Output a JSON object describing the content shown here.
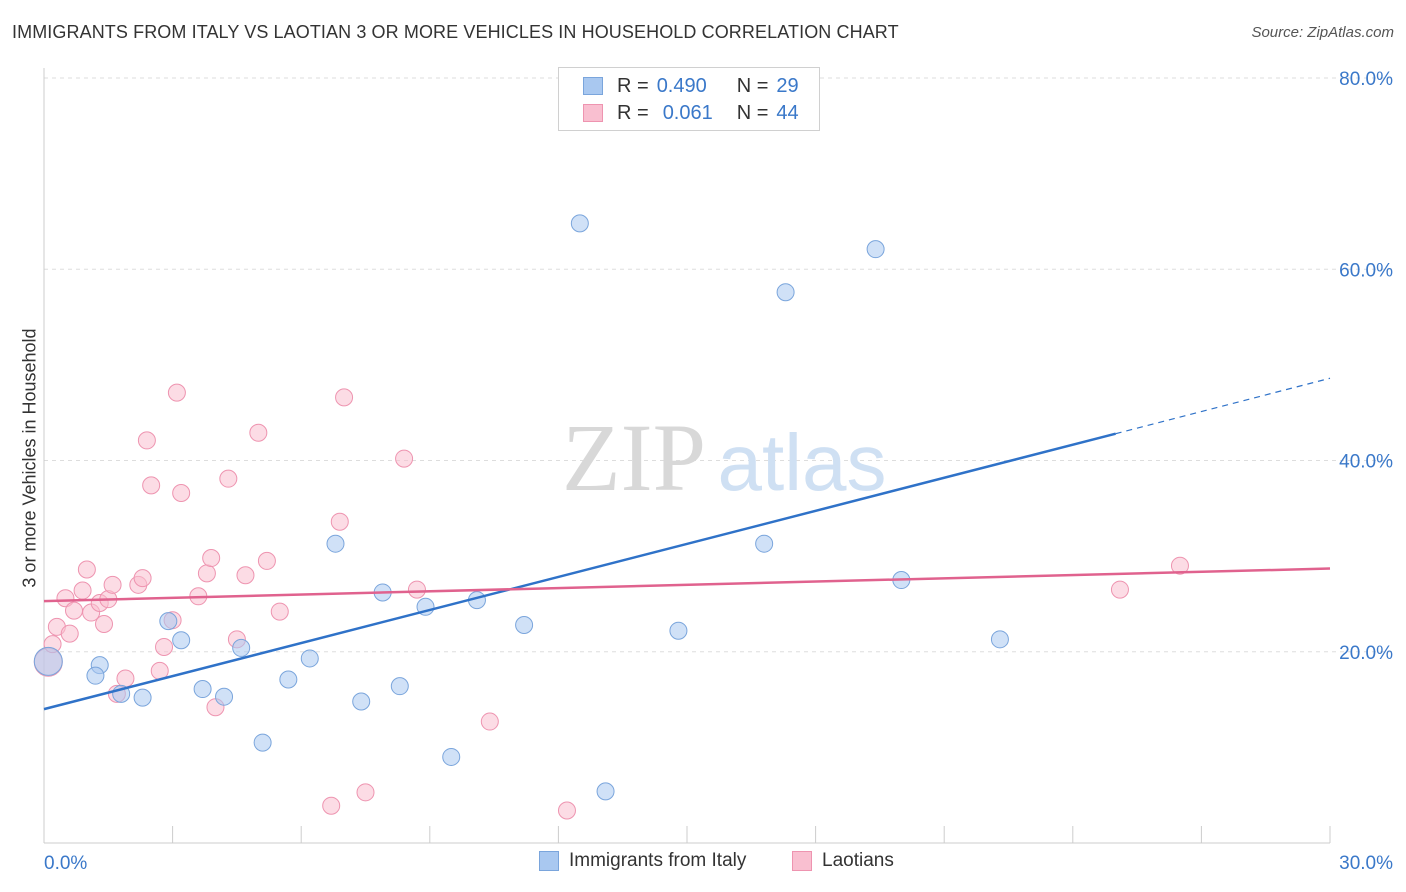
{
  "header": {
    "title": "IMMIGRANTS FROM ITALY VS LAOTIAN 3 OR MORE VEHICLES IN HOUSEHOLD CORRELATION CHART",
    "source": "Source: ZipAtlas.com"
  },
  "watermark": {
    "zip": "ZIP",
    "atlas": "atlas"
  },
  "legend": {
    "rows": [
      {
        "r_label": "R =",
        "r_value": "0.490",
        "n_label": "N =",
        "n_value": "29",
        "color": "#a9c8f0",
        "border": "#7aa5dc"
      },
      {
        "r_label": "R =",
        "r_value": "0.061",
        "n_label": "N =",
        "n_value": "44",
        "color": "#f9bfd0",
        "border": "#ee94b0"
      }
    ]
  },
  "bottom_legend": {
    "italy": "Immigrants from Italy",
    "laotians": "Laotians"
  },
  "colors": {
    "italy_fill": "#a9c8f0",
    "italy_stroke": "#7aa5dc",
    "italy_line": "#2f72c8",
    "laotian_fill": "#f9bfd0",
    "laotian_stroke": "#ee94b0",
    "laotian_line": "#e0628e",
    "axis_text": "#3a78c9",
    "grid": "#dddddd"
  },
  "chart_data": {
    "type": "scatter",
    "title": "IMMIGRANTS FROM ITALY VS LAOTIAN 3 OR MORE VEHICLES IN HOUSEHOLD CORRELATION CHART",
    "xlabel": "",
    "ylabel": "3 or more Vehicles in Household",
    "xlim": [
      0,
      30
    ],
    "ylim": [
      0,
      80
    ],
    "x_tick_labels": [
      "0.0%",
      "30.0%"
    ],
    "y_tick_labels": [
      "20.0%",
      "40.0%",
      "60.0%",
      "80.0%"
    ],
    "y_ticks": [
      20,
      40,
      60,
      80
    ],
    "grid": true,
    "legend_placement": "top-center",
    "series": [
      {
        "name": "Immigrants from Italy",
        "r": 0.49,
        "n": 29,
        "trend": {
          "x0": 0,
          "y0": 14.0,
          "x1": 25.0,
          "y1": 42.8,
          "dash_to_x": 30,
          "dash_to_y": 48.6
        },
        "points": [
          [
            0.1,
            19.0
          ],
          [
            1.3,
            18.6
          ],
          [
            1.2,
            17.5
          ],
          [
            1.8,
            15.6
          ],
          [
            2.3,
            15.2
          ],
          [
            2.9,
            23.2
          ],
          [
            3.2,
            21.2
          ],
          [
            3.7,
            16.1
          ],
          [
            4.2,
            15.3
          ],
          [
            4.6,
            20.4
          ],
          [
            5.1,
            10.5
          ],
          [
            5.7,
            17.1
          ],
          [
            6.2,
            19.3
          ],
          [
            6.8,
            31.3
          ],
          [
            7.4,
            14.8
          ],
          [
            7.9,
            26.2
          ],
          [
            8.3,
            16.4
          ],
          [
            8.9,
            24.7
          ],
          [
            9.5,
            9.0
          ],
          [
            10.1,
            25.4
          ],
          [
            11.2,
            22.8
          ],
          [
            12.5,
            64.8
          ],
          [
            13.1,
            5.4
          ],
          [
            14.8,
            22.2
          ],
          [
            16.8,
            31.3
          ],
          [
            17.3,
            57.6
          ],
          [
            19.4,
            62.1
          ],
          [
            20.0,
            27.5
          ],
          [
            22.3,
            21.3
          ]
        ]
      },
      {
        "name": "Laotians",
        "r": 0.061,
        "n": 44,
        "trend": {
          "x0": 0,
          "y0": 25.3,
          "x1": 30,
          "y1": 28.7
        },
        "points": [
          [
            0.1,
            18.9
          ],
          [
            0.2,
            20.8
          ],
          [
            0.3,
            22.6
          ],
          [
            0.5,
            25.6
          ],
          [
            0.6,
            21.9
          ],
          [
            0.7,
            24.3
          ],
          [
            0.9,
            26.4
          ],
          [
            1.0,
            28.6
          ],
          [
            1.1,
            24.1
          ],
          [
            1.3,
            25.1
          ],
          [
            1.4,
            22.9
          ],
          [
            1.5,
            25.5
          ],
          [
            1.6,
            27.0
          ],
          [
            1.7,
            15.6
          ],
          [
            1.9,
            17.2
          ],
          [
            2.2,
            27.0
          ],
          [
            2.3,
            27.7
          ],
          [
            2.4,
            42.1
          ],
          [
            2.5,
            37.4
          ],
          [
            2.7,
            18.0
          ],
          [
            2.8,
            20.5
          ],
          [
            3.0,
            23.3
          ],
          [
            3.1,
            47.1
          ],
          [
            3.2,
            36.6
          ],
          [
            3.6,
            25.8
          ],
          [
            3.8,
            28.2
          ],
          [
            3.9,
            29.8
          ],
          [
            4.0,
            14.2
          ],
          [
            4.3,
            38.1
          ],
          [
            4.5,
            21.3
          ],
          [
            4.7,
            28.0
          ],
          [
            5.0,
            42.9
          ],
          [
            5.2,
            29.5
          ],
          [
            5.5,
            24.2
          ],
          [
            6.7,
            3.9
          ],
          [
            6.9,
            33.6
          ],
          [
            7.0,
            46.6
          ],
          [
            7.5,
            5.3
          ],
          [
            8.4,
            40.2
          ],
          [
            8.7,
            26.5
          ],
          [
            10.4,
            12.7
          ],
          [
            12.2,
            3.4
          ],
          [
            25.1,
            26.5
          ],
          [
            26.5,
            29.0
          ]
        ]
      }
    ]
  }
}
